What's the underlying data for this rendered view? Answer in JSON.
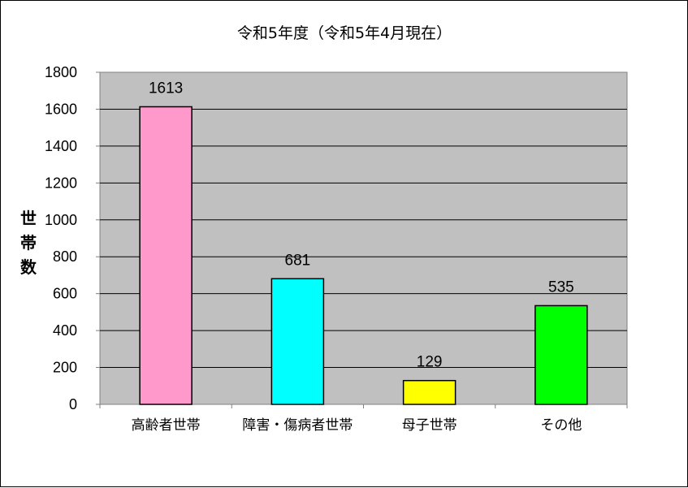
{
  "chart_data": {
    "type": "bar",
    "title": "令和5年度（令和5年4月現在）",
    "xlabel": "",
    "ylabel": "世帯数",
    "ylim": [
      0,
      1800
    ],
    "yticks": [
      0,
      200,
      400,
      600,
      800,
      1000,
      1200,
      1400,
      1600,
      1800
    ],
    "categories": [
      "高齢者世帯",
      "障害・傷病者世帯",
      "母子世帯",
      "その他"
    ],
    "values": [
      1613,
      681,
      129,
      535
    ],
    "bar_colors": [
      "#ff99cc",
      "#00ffff",
      "#ffff00",
      "#00ff00"
    ],
    "plot_background": "#c0c0c0",
    "gridlines": true,
    "legend": false,
    "data_labels": true
  }
}
